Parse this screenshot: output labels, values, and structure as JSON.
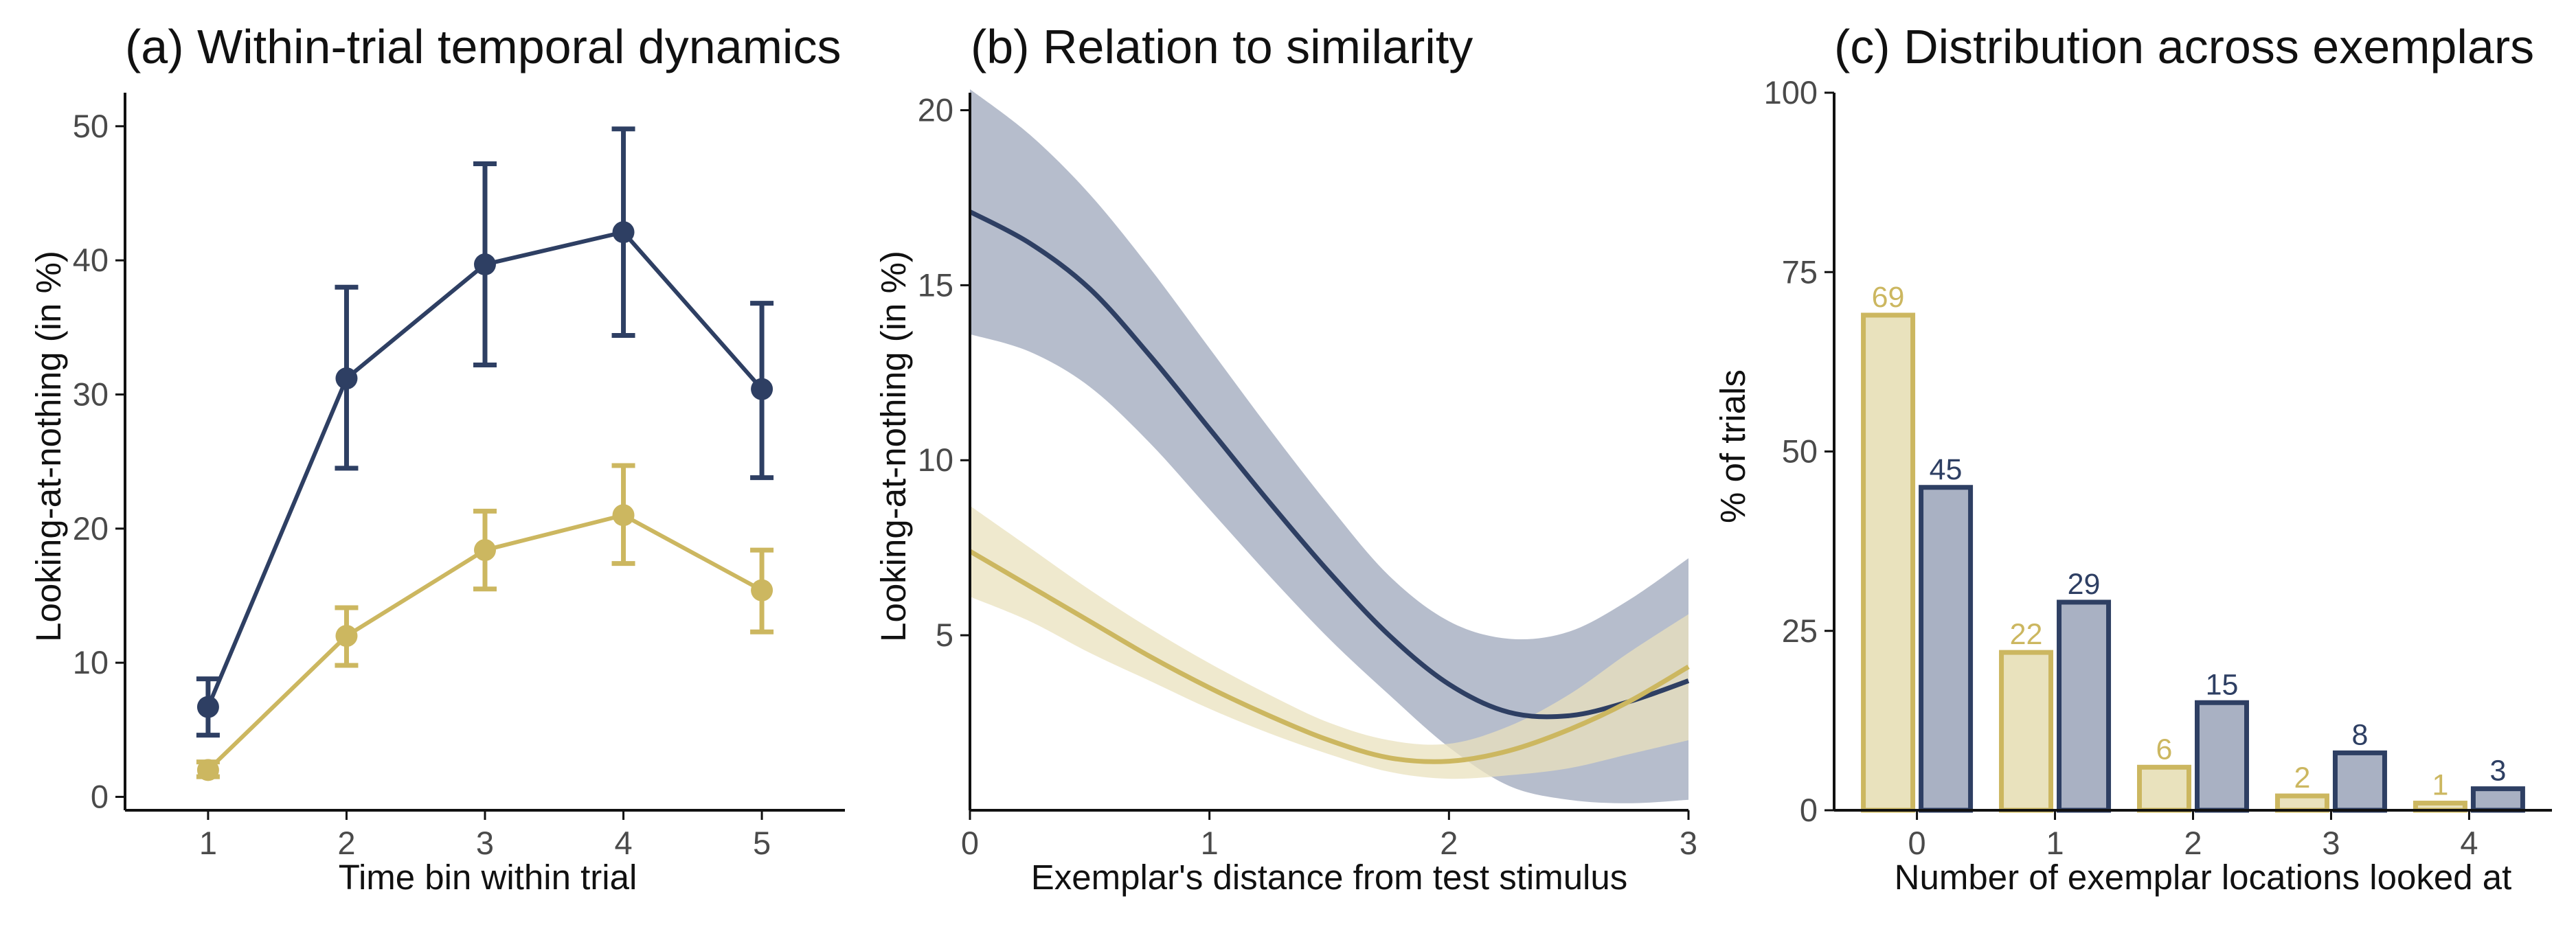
{
  "colors": {
    "navy": "#2e3f63",
    "gold": "#ccb760",
    "navy_fill": "#a9b1c3",
    "gold_fill": "#e9e2bd",
    "axis": "#111111"
  },
  "chart_data": [
    {
      "type": "line",
      "title": "(a) Within-trial temporal dynamics",
      "xlabel": "Time bin within trial",
      "ylabel": "Looking-at-nothing (in %)",
      "x": [
        1,
        2,
        3,
        4,
        5
      ],
      "xticks": [
        "1",
        "2",
        "3",
        "4",
        "5"
      ],
      "yticks": [
        "0",
        "10",
        "20",
        "30",
        "40",
        "50"
      ],
      "xlim": [
        0.4,
        5.6
      ],
      "ylim": [
        -1,
        52.5
      ],
      "series": [
        {
          "color": "navy",
          "values": [
            6.7,
            31.2,
            39.7,
            42.1,
            30.4
          ],
          "lower": [
            4.6,
            24.5,
            32.2,
            34.4,
            23.8
          ],
          "upper": [
            8.8,
            38.0,
            47.2,
            49.8,
            36.8
          ]
        },
        {
          "color": "gold",
          "values": [
            2.0,
            12.0,
            18.4,
            21.0,
            15.4
          ],
          "lower": [
            1.5,
            9.8,
            15.5,
            17.4,
            12.3
          ],
          "upper": [
            2.6,
            14.1,
            21.3,
            24.7,
            18.4
          ]
        }
      ]
    },
    {
      "type": "area",
      "title": "(b) Relation to similarity",
      "xlabel": "Exemplar's distance from test stimulus",
      "ylabel": "Looking-at-nothing (in %)",
      "xticks": [
        "0",
        "1",
        "2",
        "3"
      ],
      "yticks": [
        "5",
        "10",
        "15",
        "20"
      ],
      "xlim": [
        0,
        3
      ],
      "ylim": [
        0,
        20.5
      ],
      "series": [
        {
          "color": "navy",
          "x": [
            0,
            0.25,
            0.5,
            0.75,
            1.0,
            1.25,
            1.5,
            1.75,
            2.0,
            2.25,
            2.5,
            2.75,
            3.0
          ],
          "values": [
            17.1,
            16.2,
            14.9,
            13.0,
            10.9,
            8.8,
            6.8,
            5.0,
            3.6,
            2.8,
            2.7,
            3.1,
            3.7
          ],
          "lower": [
            13.6,
            13.1,
            12.1,
            10.5,
            8.6,
            6.7,
            4.9,
            3.3,
            1.8,
            0.7,
            0.3,
            0.2,
            0.3
          ],
          "upper": [
            20.6,
            19.3,
            17.6,
            15.5,
            13.2,
            10.9,
            8.7,
            6.7,
            5.4,
            4.9,
            5.1,
            6.0,
            7.2
          ]
        },
        {
          "color": "gold",
          "x": [
            0,
            0.25,
            0.5,
            0.75,
            1.0,
            1.25,
            1.5,
            1.75,
            2.0,
            2.25,
            2.5,
            2.75,
            3.0
          ],
          "values": [
            7.4,
            6.4,
            5.4,
            4.4,
            3.5,
            2.7,
            2.0,
            1.5,
            1.4,
            1.7,
            2.3,
            3.1,
            4.1
          ],
          "lower": [
            6.1,
            5.4,
            4.5,
            3.7,
            2.9,
            2.2,
            1.6,
            1.1,
            0.9,
            1.0,
            1.2,
            1.6,
            2.0
          ],
          "upper": [
            8.7,
            7.5,
            6.3,
            5.2,
            4.2,
            3.3,
            2.5,
            2.0,
            1.9,
            2.4,
            3.3,
            4.5,
            5.6
          ]
        }
      ]
    },
    {
      "type": "bar",
      "title": "(c) Distribution across exemplars",
      "xlabel": "Number of exemplar locations looked at",
      "ylabel": "% of trials",
      "categories": [
        "0",
        "1",
        "2",
        "3",
        "4"
      ],
      "yticks": [
        "0",
        "25",
        "50",
        "75",
        "100"
      ],
      "ylim": [
        0,
        100
      ],
      "series": [
        {
          "color": "gold",
          "values": [
            69,
            22,
            6,
            2,
            1
          ],
          "labels": [
            "69",
            "22",
            "6",
            "2",
            "1"
          ]
        },
        {
          "color": "navy",
          "values": [
            45,
            29,
            15,
            8,
            3
          ],
          "labels": [
            "45",
            "29",
            "15",
            "8",
            "3"
          ]
        }
      ]
    }
  ]
}
